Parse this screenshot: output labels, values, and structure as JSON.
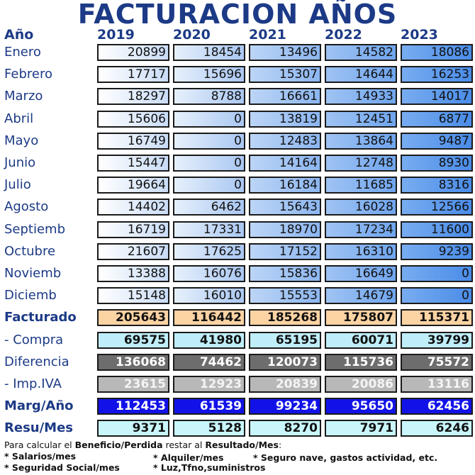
{
  "title": "FACTURACION AÑOS",
  "header": {
    "label": "Año",
    "years": [
      "2019",
      "2020",
      "2021",
      "2022",
      "2023"
    ]
  },
  "months": [
    {
      "label": "Enero",
      "values": [
        "20899",
        "18454",
        "13496",
        "14582",
        "18086"
      ]
    },
    {
      "label": "Febrero",
      "values": [
        "17717",
        "15696",
        "15307",
        "14644",
        "16253"
      ]
    },
    {
      "label": "Marzo",
      "values": [
        "18297",
        "8788",
        "16661",
        "14933",
        "14017"
      ]
    },
    {
      "label": "Abril",
      "values": [
        "15606",
        "0",
        "13819",
        "12451",
        "6877"
      ]
    },
    {
      "label": "Mayo",
      "values": [
        "16749",
        "0",
        "12483",
        "13864",
        "9487"
      ]
    },
    {
      "label": "Junio",
      "values": [
        "15447",
        "0",
        "14164",
        "12748",
        "8930"
      ]
    },
    {
      "label": "Julio",
      "values": [
        "19664",
        "0",
        "16184",
        "11685",
        "8316"
      ]
    },
    {
      "label": "Agosto",
      "values": [
        "14402",
        "6462",
        "15643",
        "16028",
        "12566"
      ]
    },
    {
      "label": "Septiemb",
      "values": [
        "16719",
        "17331",
        "18970",
        "17234",
        "11600"
      ]
    },
    {
      "label": "Octubre",
      "values": [
        "21607",
        "17625",
        "17152",
        "16310",
        "9239"
      ]
    },
    {
      "label": "Noviemb",
      "values": [
        "13388",
        "16076",
        "15836",
        "16649",
        "0"
      ]
    },
    {
      "label": "Diciemb",
      "values": [
        "15148",
        "16010",
        "15553",
        "14679",
        "0"
      ]
    }
  ],
  "summary": [
    {
      "key": "fact",
      "label": "Facturado",
      "bold_label": true,
      "values": [
        "205643",
        "116442",
        "185268",
        "175807",
        "115371"
      ]
    },
    {
      "key": "comp",
      "label": "- Compra",
      "bold_label": false,
      "values": [
        "69575",
        "41980",
        "65195",
        "60071",
        "39799"
      ]
    },
    {
      "key": "dif",
      "label": "Diferencia",
      "bold_label": false,
      "values": [
        "136068",
        "74462",
        "120073",
        "115736",
        "75572"
      ]
    },
    {
      "key": "iva",
      "label": "- Imp.IVA",
      "bold_label": false,
      "values": [
        "23615",
        "12923",
        "20839",
        "20086",
        "13116"
      ]
    },
    {
      "key": "marg",
      "label": "Marg/Año",
      "bold_label": true,
      "values": [
        "112453",
        "61539",
        "99234",
        "95650",
        "62456"
      ]
    },
    {
      "key": "resu",
      "label": "Resu/Mes",
      "bold_label": true,
      "values": [
        "9371",
        "5128",
        "8270",
        "7971",
        "6246"
      ]
    }
  ],
  "footnote": {
    "line1_a": "Para calcular el ",
    "line1_b": "Beneficio/Perdida",
    "line1_c": " restar al ",
    "line1_d": "Resultado/Mes",
    "line1_e": ":",
    "item1": "* Salarios/mes",
    "item2": "* Alquiler/mes",
    "item3": "* Seguro nave, gastos actividad, etc.",
    "item4": "* Seguridad Social/mes",
    "item5": "* Luz,Tfno,suministros"
  },
  "colors": {
    "title": "#1c3a86",
    "facturado": "#fcd3a3",
    "compra": "#bfeef9",
    "diferencia": "#6d6d6d",
    "iva": "#b8b8b8",
    "margen": "#1212e8",
    "resultado": "#c8f6fb"
  }
}
